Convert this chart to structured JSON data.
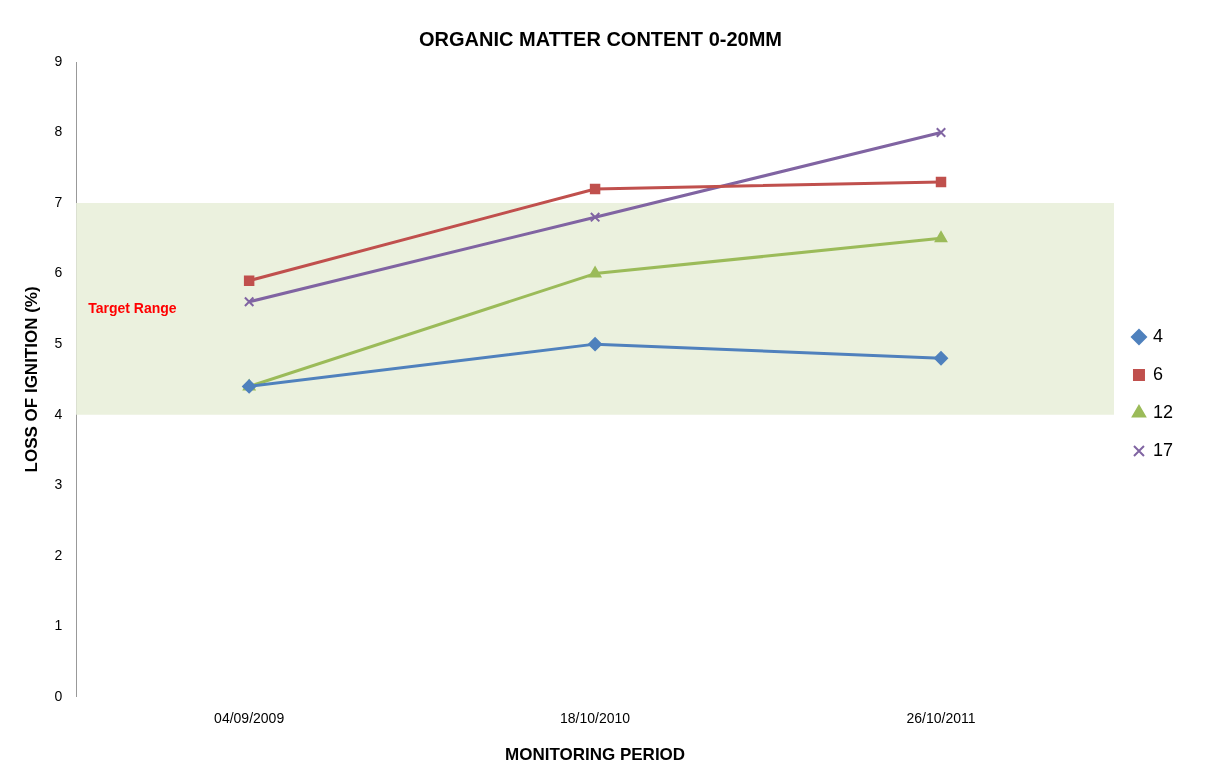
{
  "chart_data": {
    "type": "line",
    "title": "ORGANIC MATTER CONTENT 0-20MM",
    "xlabel": "MONITORING PERIOD",
    "ylabel": "LOSS OF IGNITION (%)",
    "categories": [
      "04/09/2009",
      "18/10/2010",
      "26/10/2011"
    ],
    "series": [
      {
        "name": "4",
        "color": "#4f81bd",
        "marker": "diamond",
        "values": [
          4.4,
          5.0,
          4.8
        ]
      },
      {
        "name": "6",
        "color": "#c0504d",
        "marker": "square",
        "values": [
          5.9,
          7.2,
          7.3
        ]
      },
      {
        "name": "12",
        "color": "#9bbb59",
        "marker": "triangle",
        "values": [
          4.4,
          6.0,
          6.5
        ]
      },
      {
        "name": "17",
        "color": "#8064a2",
        "marker": "cross",
        "values": [
          5.6,
          6.8,
          8.0
        ]
      }
    ],
    "ylim": [
      0,
      9
    ],
    "yticks": [
      0,
      1,
      2,
      3,
      4,
      5,
      6,
      7,
      8,
      9
    ],
    "grid": false,
    "legend": "right",
    "bands": [
      {
        "axis": "y",
        "from": 4,
        "to": 7,
        "label": "Target Range",
        "color": "#ebf1de"
      }
    ]
  }
}
